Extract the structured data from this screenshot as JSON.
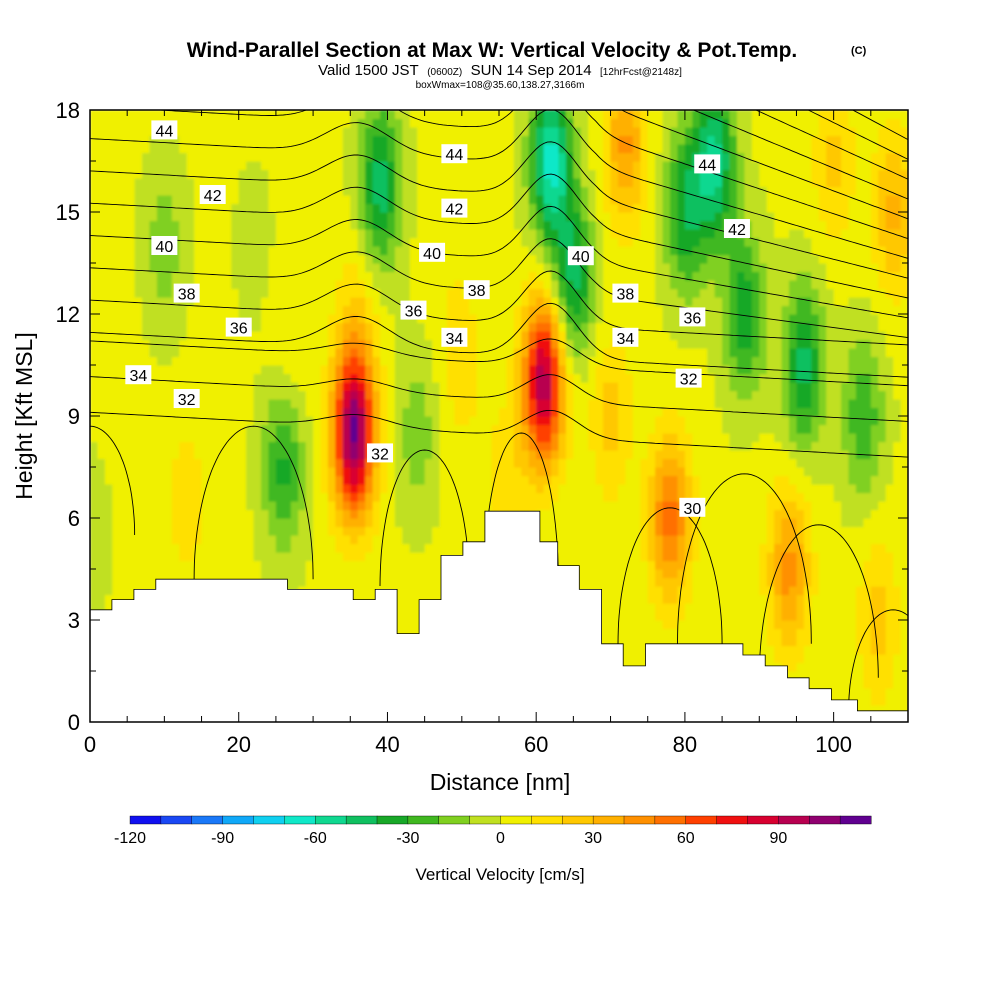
{
  "chart_data": {
    "type": "heatmap",
    "title": "Wind-Parallel Section at Max W: Vertical Velocity & Pot.Temp.",
    "title_mark": "(C)",
    "subtitle": {
      "valid": "Valid 1500 JST",
      "utc": "(0600Z)",
      "date": "SUN 14 Sep 2014",
      "forecast": "[12hrFcst@2148z]"
    },
    "box_info": "boxWmax=108@35.60,138.27,3166m",
    "xlabel": "Distance [nm]",
    "ylabel": "Height [Kft MSL]",
    "xlim": [
      0,
      110
    ],
    "ylim": [
      0,
      18
    ],
    "x_ticks": [
      0,
      20,
      40,
      60,
      80,
      100
    ],
    "y_ticks": [
      0,
      3,
      6,
      9,
      12,
      15,
      18
    ],
    "colorbar": {
      "label": "Vertical Velocity [cm/s]",
      "tick_labels": [
        "-120",
        "-90",
        "-60",
        "-30",
        "0",
        "30",
        "60",
        "90"
      ],
      "tick_values": [
        -120,
        -90,
        -60,
        -30,
        0,
        30,
        60,
        90
      ],
      "levels": [
        -120,
        -110,
        -100,
        -90,
        -80,
        -70,
        -60,
        -50,
        -40,
        -30,
        -20,
        -10,
        0,
        10,
        20,
        30,
        40,
        50,
        60,
        70,
        80,
        90,
        100,
        110
      ],
      "colors": [
        "#1010f0",
        "#1a48f4",
        "#1a78f8",
        "#10a8f8",
        "#10d0f0",
        "#10e8c8",
        "#10d890",
        "#10c060",
        "#18a828",
        "#40b820",
        "#80d020",
        "#c0e020",
        "#f0f000",
        "#ffe000",
        "#ffc800",
        "#ffb000",
        "#ff9000",
        "#ff7000",
        "#ff4000",
        "#f01010",
        "#d80030",
        "#b80050",
        "#900070",
        "#600090"
      ]
    },
    "velocity_features": [
      {
        "x": 0,
        "y": 6,
        "w": -10
      },
      {
        "x": 10,
        "y": 14,
        "w": -18
      },
      {
        "x": 22,
        "y": 14,
        "w": -6
      },
      {
        "x": 26,
        "y": 7.5,
        "w": -35
      },
      {
        "x": 27,
        "y": 11,
        "w": 8
      },
      {
        "x": 35.5,
        "y": 8.5,
        "w": 108
      },
      {
        "x": 36,
        "y": 12,
        "w": 15
      },
      {
        "x": 39,
        "y": 15.8,
        "w": -48
      },
      {
        "x": 44,
        "y": 8.5,
        "w": -18
      },
      {
        "x": 48,
        "y": 14,
        "w": 5
      },
      {
        "x": 50,
        "y": 10.5,
        "w": 14
      },
      {
        "x": 56,
        "y": 7,
        "w": 15
      },
      {
        "x": 61,
        "y": 10,
        "w": 95
      },
      {
        "x": 62,
        "y": 16.5,
        "w": -65
      },
      {
        "x": 65,
        "y": 13,
        "w": -45
      },
      {
        "x": 72,
        "y": 17,
        "w": 40
      },
      {
        "x": 70,
        "y": 9,
        "w": 22
      },
      {
        "x": 78,
        "y": 6,
        "w": 52
      },
      {
        "x": 80,
        "y": 15,
        "w": -40
      },
      {
        "x": 84,
        "y": 16.5,
        "w": -55
      },
      {
        "x": 88,
        "y": 12,
        "w": -40
      },
      {
        "x": 94,
        "y": 4.5,
        "w": 42
      },
      {
        "x": 96,
        "y": 10.5,
        "w": -45
      },
      {
        "x": 104,
        "y": 9,
        "w": -30
      },
      {
        "x": 106,
        "y": 3,
        "w": 22
      },
      {
        "x": 108,
        "y": 15,
        "w": 30
      },
      {
        "x": 100,
        "y": 16.5,
        "w": 20
      },
      {
        "x": 13,
        "y": 6.5,
        "w": 14
      },
      {
        "x": 3,
        "y": 10,
        "w": 8
      }
    ],
    "theta_levels": [
      30,
      31,
      32,
      33,
      34,
      35,
      36,
      37,
      38,
      39,
      40,
      41,
      42,
      43,
      44,
      45,
      46
    ],
    "theta_labels": [
      {
        "x": 10,
        "y": 17.4,
        "text": "44"
      },
      {
        "x": 16.5,
        "y": 15.5,
        "text": "42"
      },
      {
        "x": 10,
        "y": 14.0,
        "text": "40"
      },
      {
        "x": 13,
        "y": 12.6,
        "text": "38"
      },
      {
        "x": 20,
        "y": 11.6,
        "text": "36"
      },
      {
        "x": 6.5,
        "y": 10.2,
        "text": "34"
      },
      {
        "x": 13,
        "y": 9.5,
        "text": "32"
      },
      {
        "x": 49,
        "y": 16.7,
        "text": "44"
      },
      {
        "x": 49,
        "y": 15.1,
        "text": "42"
      },
      {
        "x": 46,
        "y": 13.8,
        "text": "40"
      },
      {
        "x": 52,
        "y": 12.7,
        "text": "38"
      },
      {
        "x": 43.5,
        "y": 12.1,
        "text": "36"
      },
      {
        "x": 49,
        "y": 11.3,
        "text": "34"
      },
      {
        "x": 39,
        "y": 7.9,
        "text": "32"
      },
      {
        "x": 66,
        "y": 13.7,
        "text": "40"
      },
      {
        "x": 72,
        "y": 12.6,
        "text": "38"
      },
      {
        "x": 72,
        "y": 11.3,
        "text": "34"
      },
      {
        "x": 80.5,
        "y": 10.1,
        "text": "32"
      },
      {
        "x": 81,
        "y": 11.9,
        "text": "36"
      },
      {
        "x": 83,
        "y": 16.4,
        "text": "44"
      },
      {
        "x": 87,
        "y": 14.5,
        "text": "42"
      },
      {
        "x": 81,
        "y": 6.3,
        "text": "30"
      }
    ],
    "terrain": {
      "x": [
        0,
        2.95,
        2.95,
        5.9,
        5.9,
        8.85,
        8.85,
        11.8,
        11.8,
        26.55,
        26.55,
        35.4,
        35.4,
        38.35,
        38.35,
        41.3,
        41.3,
        44.25,
        44.25,
        47.2,
        47.2,
        50.15,
        50.15,
        53.1,
        53.1,
        60.5,
        60.5,
        62.9,
        62.9,
        65.8,
        65.8,
        68.8,
        68.8,
        71.7,
        71.7,
        74.7,
        74.7,
        76.1,
        76.1,
        87.8,
        87.8,
        90.8,
        90.8,
        93.8,
        93.8,
        96.7,
        96.7,
        99.7,
        99.7,
        103.2,
        103.2,
        106.2,
        106.2,
        110
      ],
      "y": [
        3.3,
        3.3,
        3.6,
        3.6,
        3.9,
        3.9,
        4.2,
        4.2,
        4.2,
        4.2,
        3.9,
        3.9,
        3.6,
        3.6,
        3.9,
        3.9,
        2.6,
        2.6,
        3.6,
        3.6,
        4.9,
        4.9,
        5.3,
        5.3,
        6.2,
        6.2,
        5.3,
        5.3,
        4.6,
        4.6,
        3.9,
        3.9,
        2.3,
        2.3,
        1.65,
        1.65,
        2.3,
        2.3,
        2.3,
        2.3,
        1.97,
        1.97,
        1.65,
        1.65,
        1.3,
        1.3,
        0.98,
        0.98,
        0.65,
        0.65,
        0.33,
        0.33,
        0.33,
        0.33
      ]
    }
  }
}
